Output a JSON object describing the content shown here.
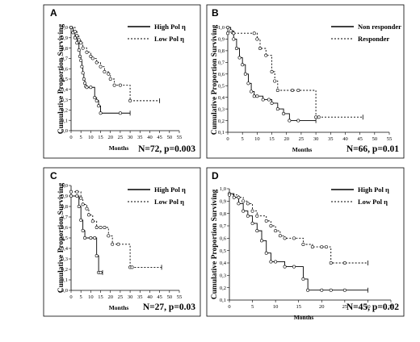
{
  "chart_data": [
    {
      "type": "line",
      "panel": "A",
      "ylabel": "Cumulative Proportion Surviving",
      "xlabel": "Months",
      "ylim": [
        0,
        1.0
      ],
      "yticks": [
        "0,0",
        "0,1",
        "0,2",
        "0,3",
        "0,4",
        "0,5",
        "0,6",
        "0,7",
        "0,8",
        "0,9",
        "1,0"
      ],
      "xlim": [
        0,
        55
      ],
      "xticks": [
        "0",
        "5",
        "10",
        "15",
        "20",
        "25",
        "30",
        "35",
        "40",
        "45",
        "50",
        "55"
      ],
      "legend_position": "top-right",
      "annotation": "N=72, p=0.003",
      "series": [
        {
          "name": "High Pol η",
          "style": "solid",
          "x": [
            0,
            1,
            2,
            3,
            4,
            4.5,
            5,
            5.5,
            6,
            6.5,
            7,
            7.5,
            8,
            10,
            12,
            13,
            14,
            15,
            25,
            30
          ],
          "y": [
            1.0,
            0.95,
            0.9,
            0.85,
            0.78,
            0.72,
            0.68,
            0.62,
            0.56,
            0.5,
            0.46,
            0.43,
            0.42,
            0.42,
            0.32,
            0.29,
            0.24,
            0.17,
            0.17,
            0.17
          ]
        },
        {
          "name": "Low Pol η",
          "style": "dotted",
          "x": [
            0,
            2,
            3,
            4,
            5,
            6,
            8,
            10,
            11,
            13,
            15,
            17,
            19,
            20,
            22,
            25,
            30,
            45
          ],
          "y": [
            1.0,
            0.96,
            0.92,
            0.88,
            0.85,
            0.8,
            0.76,
            0.72,
            0.7,
            0.66,
            0.62,
            0.57,
            0.55,
            0.5,
            0.44,
            0.44,
            0.29,
            0.29
          ]
        }
      ]
    },
    {
      "type": "line",
      "panel": "B",
      "ylabel": "Cumulative Proportion Surviving",
      "xlabel": "Months",
      "ylim": [
        0.1,
        1.0
      ],
      "yticks": [
        "0,1",
        "0,2",
        "0,3",
        "0,4",
        "0,5",
        "0,6",
        "0,7",
        "0,8",
        "0,9",
        "1,0"
      ],
      "xlim": [
        0,
        55
      ],
      "xticks": [
        "0",
        "5",
        "10",
        "15",
        "20",
        "25",
        "30",
        "35",
        "40",
        "45",
        "50",
        "55"
      ],
      "legend_position": "top-right",
      "annotation": "N=66, p=0.01",
      "series": [
        {
          "name": "Non responder",
          "style": "solid",
          "x": [
            0,
            1,
            2,
            3,
            4,
            5,
            6,
            7,
            8,
            9,
            10,
            12,
            14,
            15,
            17,
            19,
            21,
            24,
            30
          ],
          "y": [
            1.0,
            0.97,
            0.9,
            0.82,
            0.74,
            0.68,
            0.6,
            0.52,
            0.45,
            0.41,
            0.41,
            0.38,
            0.38,
            0.35,
            0.3,
            0.26,
            0.2,
            0.2,
            0.2
          ]
        },
        {
          "name": "Responder",
          "style": "dotted",
          "x": [
            0,
            2,
            9,
            10,
            11,
            13,
            15,
            16,
            17,
            22,
            24,
            30,
            31,
            46
          ],
          "y": [
            0.95,
            0.95,
            0.95,
            0.9,
            0.82,
            0.76,
            0.62,
            0.54,
            0.46,
            0.46,
            0.46,
            0.23,
            0.23,
            0.23
          ]
        }
      ]
    },
    {
      "type": "line",
      "panel": "C",
      "ylabel": "Cumulative Proportion Surviving",
      "xlabel": "Months",
      "ylim": [
        0,
        1.0
      ],
      "yticks": [
        "0,0",
        "0,1",
        "0,2",
        "0,3",
        "0,4",
        "0,5",
        "0,6",
        "0,7",
        "0,8",
        "0,9",
        "1,0"
      ],
      "xlim": [
        0,
        55
      ],
      "xticks": [
        "0",
        "5",
        "10",
        "15",
        "20",
        "25",
        "30",
        "35",
        "40",
        "45",
        "50",
        "55"
      ],
      "legend_position": "top-right",
      "annotation": "N=27, p=0.03",
      "series": [
        {
          "name": "High Pol η",
          "style": "solid",
          "x": [
            0,
            3,
            4,
            5,
            6,
            7,
            10,
            12,
            13,
            14,
            15,
            16
          ],
          "y": [
            0.9,
            0.9,
            0.8,
            0.67,
            0.57,
            0.5,
            0.5,
            0.5,
            0.33,
            0.17,
            0.17,
            0.17
          ]
        },
        {
          "name": "Low Pol η",
          "style": "dotted",
          "x": [
            0,
            3,
            5,
            6,
            8,
            9,
            11,
            13,
            15,
            17,
            19,
            21,
            24,
            30,
            31,
            46
          ],
          "y": [
            0.94,
            0.94,
            0.88,
            0.82,
            0.78,
            0.72,
            0.66,
            0.6,
            0.6,
            0.6,
            0.52,
            0.44,
            0.44,
            0.22,
            0.22,
            0.22
          ]
        }
      ]
    },
    {
      "type": "line",
      "panel": "D",
      "ylabel": "Cumulative Proportion Surviving",
      "xlabel": "Months",
      "ylim": [
        0.1,
        1.0
      ],
      "yticks": [
        "0,1",
        "0,2",
        "0,3",
        "0,4",
        "0,5",
        "0,6",
        "0,7",
        "0,8",
        "0,9",
        "1,0"
      ],
      "xlim": [
        0,
        35
      ],
      "xticks": [
        "0",
        "5",
        "10",
        "15",
        "20",
        "25",
        "30",
        "35"
      ],
      "legend_position": "top-right",
      "annotation": "N=45, p=0.02",
      "series": [
        {
          "name": "High Pol η",
          "style": "solid",
          "x": [
            0,
            1,
            2,
            3,
            4,
            5,
            6,
            7,
            8,
            9,
            10,
            12,
            14,
            16,
            17,
            20,
            22,
            25,
            30
          ],
          "y": [
            0.96,
            0.93,
            0.88,
            0.82,
            0.78,
            0.72,
            0.66,
            0.58,
            0.48,
            0.41,
            0.41,
            0.37,
            0.37,
            0.27,
            0.18,
            0.18,
            0.18,
            0.18,
            0.18
          ]
        },
        {
          "name": "Low Pol η",
          "style": "dotted",
          "x": [
            0,
            2,
            3,
            4,
            5,
            6,
            8,
            9,
            10,
            11,
            12,
            14,
            16,
            18,
            20,
            21,
            22,
            25,
            30
          ],
          "y": [
            0.95,
            0.93,
            0.9,
            0.88,
            0.82,
            0.78,
            0.74,
            0.7,
            0.66,
            0.62,
            0.6,
            0.6,
            0.55,
            0.53,
            0.53,
            0.53,
            0.4,
            0.4,
            0.4
          ]
        }
      ]
    }
  ]
}
